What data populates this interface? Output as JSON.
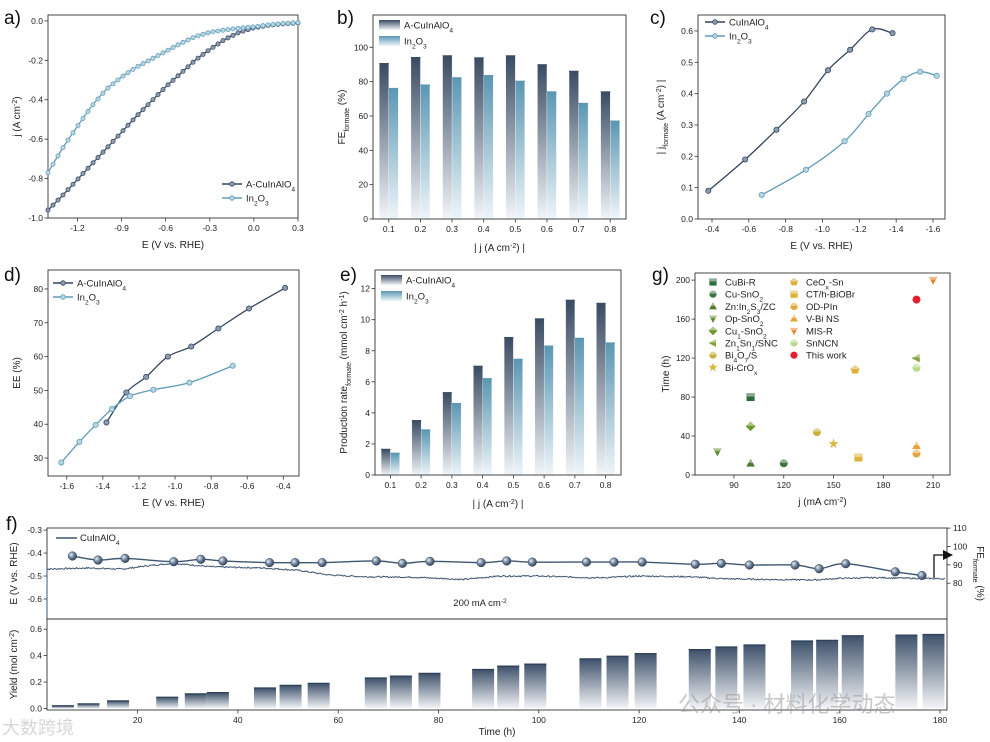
{
  "watermarks": [
    "公众号 · 材料化学动态",
    "大数跨境"
  ],
  "chart_data": [
    {
      "id": "a",
      "panel_label": "a)",
      "type": "line",
      "xlabel": "E (V vs. RHE)",
      "ylabel": "j (A cm^{-2})",
      "xlim": [
        -1.4,
        0.3
      ],
      "ylim": [
        -1.0,
        0.03
      ],
      "xticks": [
        "-1.2",
        "-0.9",
        "-0.6",
        "-0.3",
        "0.0",
        "0.3"
      ],
      "yticks": [
        "0.0",
        "-0.2",
        "-0.4",
        "-0.6",
        "-0.8",
        "-1.0"
      ],
      "legend": "bottom-right",
      "series": [
        {
          "name": "A-CuInAlO_{4}",
          "color": "#34455e",
          "marker_fill": "#8c9db2",
          "x": [
            -1.4,
            -1.3,
            -1.2,
            -1.1,
            -1.0,
            -0.9,
            -0.8,
            -0.7,
            -0.6,
            -0.5,
            -0.4,
            -0.3,
            -0.2,
            -0.1,
            0.0,
            0.1,
            0.2,
            0.3
          ],
          "y": [
            -0.96,
            -0.885,
            -0.805,
            -0.725,
            -0.645,
            -0.565,
            -0.485,
            -0.41,
            -0.335,
            -0.268,
            -0.2,
            -0.145,
            -0.095,
            -0.058,
            -0.035,
            -0.022,
            -0.015,
            -0.01
          ]
        },
        {
          "name": "In_{2}O_{3}",
          "color": "#5f9cb8",
          "marker_fill": "#b8d5e2",
          "x": [
            -1.4,
            -1.3,
            -1.2,
            -1.1,
            -1.0,
            -0.9,
            -0.8,
            -0.7,
            -0.6,
            -0.5,
            -0.4,
            -0.3,
            -0.2,
            -0.1,
            0.0,
            0.1,
            0.2,
            0.3
          ],
          "y": [
            -0.77,
            -0.645,
            -0.535,
            -0.43,
            -0.345,
            -0.285,
            -0.235,
            -0.195,
            -0.155,
            -0.115,
            -0.08,
            -0.058,
            -0.046,
            -0.037,
            -0.03,
            -0.02,
            -0.013,
            -0.008
          ]
        }
      ]
    },
    {
      "id": "b",
      "panel_label": "b)",
      "type": "bar",
      "xlabel": "| j (A cm^{-2}) |",
      "ylabel": "FE_{formate} (%)",
      "categories": [
        "0.1",
        "0.2",
        "0.3",
        "0.4",
        "0.5",
        "0.6",
        "0.7",
        "0.8"
      ],
      "ylim": [
        0,
        118.8
      ],
      "yticks": [
        "0",
        "20",
        "40",
        "60",
        "80",
        "100"
      ],
      "legend": "top-left",
      "series": [
        {
          "name": "A-CuInAlO_{4}",
          "color": "#3a4b63",
          "values": [
            90.5,
            94,
            95,
            93.8,
            95,
            89.8,
            86,
            74
          ]
        },
        {
          "name": "In_{2}O_{3}",
          "color": "#5b97b2",
          "values": [
            76,
            78,
            82.2,
            83.5,
            80.2,
            74,
            67.3,
            57
          ]
        }
      ]
    },
    {
      "id": "c",
      "panel_label": "c)",
      "type": "line",
      "xlabel": "E (V vs. RHE)",
      "ylabel": "| j_{formate} (A cm^{-2}) |",
      "xlim": [
        -0.324,
        -1.665
      ],
      "ylim": [
        0,
        0.651
      ],
      "xticks": [
        "-0.4",
        "-0.6",
        "-0.8",
        "-1.0",
        "-1.2",
        "-1.4",
        "-1.6"
      ],
      "yticks": [
        "0.0",
        "0.1",
        "0.2",
        "0.3",
        "0.4",
        "0.5",
        "0.6"
      ],
      "legend": "top-left",
      "series": [
        {
          "name": "CuInAlO_{4}",
          "color": "#34455e",
          "marker_fill": "#8c9db2",
          "x": [
            -0.38,
            -0.58,
            -0.75,
            -0.9,
            -1.03,
            -1.15,
            -1.27,
            -1.38
          ],
          "y": [
            0.09,
            0.19,
            0.285,
            0.375,
            0.475,
            0.54,
            0.605,
            0.593
          ]
        },
        {
          "name": "In_{2}O_{3}",
          "color": "#5f9cb8",
          "marker_fill": "#b8d5e2",
          "x": [
            -0.67,
            -0.91,
            -1.12,
            -1.25,
            -1.35,
            -1.44,
            -1.53,
            -1.62
          ],
          "y": [
            0.077,
            0.157,
            0.248,
            0.335,
            0.4,
            0.447,
            0.47,
            0.457
          ]
        }
      ]
    },
    {
      "id": "d",
      "panel_label": "d)",
      "type": "line",
      "xlabel": "E (V vs. RHE)",
      "ylabel": "EE (%)",
      "xlim": [
        -1.704,
        -0.313
      ],
      "ylim": [
        24.7,
        85.6
      ],
      "xticks": [
        "-1.6",
        "-1.4",
        "-1.2",
        "-1.0",
        "-0.8",
        "-0.6",
        "-0.4"
      ],
      "yticks": [
        "30",
        "40",
        "50",
        "60",
        "70",
        "80"
      ],
      "legend": "top-left",
      "series": [
        {
          "name": "A-CuInAlO_{4}",
          "color": "#34455e",
          "marker_fill": "#8c9db2",
          "x": [
            -1.38,
            -1.27,
            -1.16,
            -1.04,
            -0.91,
            -0.76,
            -0.59,
            -0.39
          ],
          "y": [
            40.5,
            49.4,
            54,
            60,
            63,
            68.3,
            74.2,
            80.3
          ]
        },
        {
          "name": "In_{2}O_{3}",
          "color": "#5f9cb8",
          "marker_fill": "#b8d5e2",
          "x": [
            -1.63,
            -1.53,
            -1.44,
            -1.35,
            -1.25,
            -1.12,
            -0.92,
            -0.68
          ],
          "y": [
            28.7,
            34.8,
            39.8,
            44.5,
            48.3,
            50.2,
            52.3,
            57.3
          ]
        }
      ]
    },
    {
      "id": "e",
      "panel_label": "e)",
      "type": "bar",
      "xlabel": "| j (A cm^{-2}) |",
      "ylabel": "Production rate_{formate} (mmol cm^{-2} h^{-1})",
      "categories": [
        "0.1",
        "0.2",
        "0.3",
        "0.4",
        "0.5",
        "0.6",
        "0.7",
        "0.8"
      ],
      "ylim": [
        0,
        13.2
      ],
      "yticks": [
        "0",
        "2",
        "4",
        "6",
        "8",
        "10",
        "12"
      ],
      "legend": "top-left",
      "series": [
        {
          "name": "A-CuInAlO_{4}",
          "color": "#3a4b63",
          "values": [
            1.65,
            3.5,
            5.3,
            7.0,
            8.85,
            10.05,
            11.25,
            11.05
          ]
        },
        {
          "name": "In_{2}O_{3}",
          "color": "#5b97b2",
          "values": [
            1.4,
            2.9,
            4.6,
            6.2,
            7.45,
            8.3,
            8.8,
            8.5
          ]
        }
      ]
    },
    {
      "id": "g",
      "panel_label": "g)",
      "type": "scatter",
      "xlabel": "j (mA cm^{-2})",
      "ylabel": "Time (h)",
      "xlim": [
        66.5,
        220.2
      ],
      "ylim": [
        0,
        207.3
      ],
      "xticks": [
        "90",
        "120",
        "150",
        "180",
        "210"
      ],
      "yticks": [
        "0",
        "40",
        "80",
        "120",
        "160",
        "200"
      ],
      "legend": "top-left",
      "points": [
        {
          "name": "CuBi-R",
          "x": 100,
          "y": 80,
          "marker": "square",
          "color": "#2f6a3c"
        },
        {
          "name": "Cu-SnO_{2}",
          "x": 120,
          "y": 12,
          "marker": "circle",
          "color": "#3a7440"
        },
        {
          "name": "Zn:In_{2}S_{3}/ZC",
          "x": 100,
          "y": 12,
          "marker": "triangle-up",
          "color": "#4d7c30"
        },
        {
          "name": "Op-SnO_{2}",
          "x": 80,
          "y": 24,
          "marker": "triangle-down",
          "color": "#5d8a2c"
        },
        {
          "name": "Cu_{1}-SnO_{2}",
          "x": 100,
          "y": 50,
          "marker": "diamond",
          "color": "#6d982e"
        },
        {
          "name": "Zn_{1}Sn_{1}/SNC",
          "x": 200,
          "y": 120,
          "marker": "triangle-left",
          "color": "#7fa23a"
        },
        {
          "name": "Bi_{4}O_{7}/S",
          "x": 140,
          "y": 44,
          "marker": "circle",
          "color": "#c9b23c"
        },
        {
          "name": "Bi-CrO_{x}",
          "x": 150,
          "y": 32,
          "marker": "star",
          "color": "#d8b842"
        },
        {
          "name": "CeO_{x}-Sn",
          "x": 163,
          "y": 108,
          "marker": "pentagon",
          "color": "#dcae3a"
        },
        {
          "name": "CT/h-BiOBr",
          "x": 165,
          "y": 18,
          "marker": "square",
          "color": "#e0b23c"
        },
        {
          "name": "OD-PIn",
          "x": 200,
          "y": 22,
          "marker": "circle",
          "color": "#e2a63a"
        },
        {
          "name": "V-Bi NS",
          "x": 200,
          "y": 30,
          "marker": "triangle-up",
          "color": "#e6a23a"
        },
        {
          "name": "MIS-R",
          "x": 210,
          "y": 200,
          "marker": "triangle-down",
          "color": "#e6862c"
        },
        {
          "name": "SnNCN",
          "x": 200,
          "y": 110,
          "marker": "circle",
          "color": "#b9d98a"
        },
        {
          "name": "This work",
          "x": 200,
          "y": 180,
          "marker": "circle",
          "color": "#e3202b"
        }
      ]
    },
    {
      "id": "f",
      "panel_label": "f)",
      "type": "line+bar",
      "xlabel": "Time (h)",
      "xlim": [
        1.93,
        181.4
      ],
      "xticks": [
        "20",
        "40",
        "60",
        "80",
        "100",
        "120",
        "140",
        "160",
        "180"
      ],
      "top": {
        "ylabel_left": "E (V vs. RHE)",
        "ylim_left": [
          -0.687,
          -0.291
        ],
        "yticks_left": [
          "-0.3",
          "-0.4",
          "-0.5",
          "-0.6"
        ],
        "ylabel_right": "FE_{formate} (%)",
        "ylim_right": [
          60.5,
          110.05
        ],
        "yticks_right": [
          "80",
          "90",
          "100",
          "110"
        ],
        "annotation": "200 mA cm^{-2}",
        "legend": "CuInAlO_{4}",
        "color": "#3f5570",
        "potential": {
          "t": [
            0,
            0.7,
            2,
            10,
            17,
            22,
            27,
            35,
            45,
            52,
            58,
            65,
            75,
            85,
            92,
            100,
            107,
            112,
            120,
            130,
            137,
            145,
            155,
            160,
            168,
            175,
            181
          ],
          "E": [
            -0.68,
            -0.49,
            -0.47,
            -0.465,
            -0.47,
            -0.455,
            -0.445,
            -0.46,
            -0.465,
            -0.475,
            -0.495,
            -0.503,
            -0.505,
            -0.515,
            -0.5,
            -0.5,
            -0.505,
            -0.508,
            -0.5,
            -0.503,
            -0.512,
            -0.515,
            -0.517,
            -0.51,
            -0.507,
            -0.51,
            -0.512
          ]
        },
        "fe": {
          "t": [
            7.0,
            12.1,
            17.5,
            27.2,
            32.6,
            37.0,
            46.3,
            51.4,
            56.8,
            67.6,
            72.8,
            78.3,
            88.5,
            93.6,
            98.7,
            109.5,
            115,
            120.6,
            131.2,
            136.4,
            142,
            151.1,
            155.9,
            161.2,
            171.1,
            176.4
          ],
          "FE": [
            94.8,
            92.6,
            93.5,
            91.7,
            93.0,
            92.1,
            91.2,
            91.2,
            91.2,
            92.1,
            90.8,
            91.9,
            91.2,
            92.1,
            91.5,
            91.5,
            91.5,
            91.5,
            90.3,
            90.8,
            89.9,
            89.9,
            87.9,
            90.6,
            86.2,
            84.2
          ]
        }
      },
      "bottom": {
        "ylabel": "Yield (mol cm^{-2})",
        "ylim": [
          -0.0115,
          0.677
        ],
        "yticks": [
          "0.0",
          "0.2",
          "0.4",
          "0.6"
        ],
        "bars": {
          "t": [
            5.1,
            10.2,
            16.1,
            25.9,
            31.6,
            36,
            45.4,
            50.5,
            56.1,
            67.5,
            72.5,
            78.2,
            88.9,
            93.9,
            99.3,
            110.3,
            115.7,
            121.3,
            132.1,
            137.4,
            143,
            152.5,
            157.5,
            162.6,
            173.3,
            178.7
          ],
          "yield": [
            0.02,
            0.035,
            0.057,
            0.085,
            0.11,
            0.12,
            0.155,
            0.175,
            0.19,
            0.23,
            0.245,
            0.265,
            0.295,
            0.32,
            0.335,
            0.375,
            0.395,
            0.415,
            0.445,
            0.465,
            0.48,
            0.51,
            0.515,
            0.55,
            0.555,
            0.56
          ]
        }
      }
    }
  ]
}
